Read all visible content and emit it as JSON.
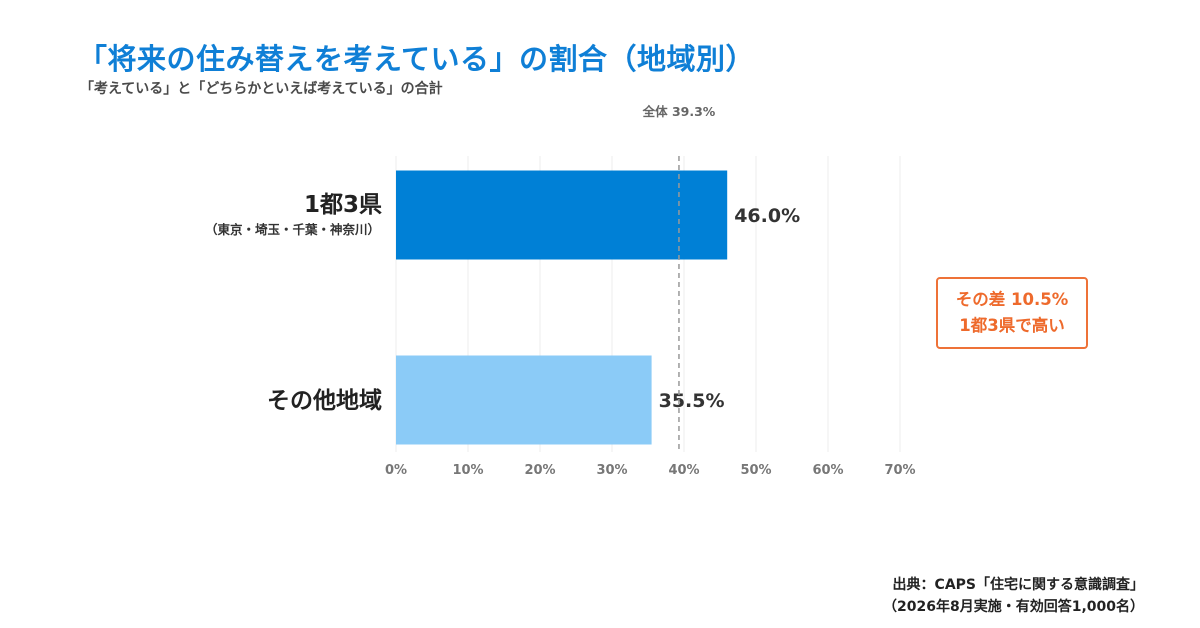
{
  "title": "「将来の住み替えを考えている」の割合（地域別）",
  "subtitle": "「考えている」と「どちらかといえば考えている」の合計",
  "chart_data": {
    "type": "bar",
    "orientation": "horizontal",
    "categories": [
      {
        "label": "1都3県",
        "sublabel": "（東京・埼玉・千葉・神奈川）"
      },
      {
        "label": "その他地域",
        "sublabel": ""
      }
    ],
    "values": [
      46.0,
      35.5
    ],
    "value_labels": [
      "46.0%",
      "35.5%"
    ],
    "colors": [
      "#0080d6",
      "#8bcbf7"
    ],
    "xlim": [
      0,
      70
    ],
    "xticks": [
      0,
      10,
      20,
      30,
      40,
      50,
      60,
      70
    ],
    "xtick_labels": [
      "0%",
      "10%",
      "20%",
      "30%",
      "40%",
      "50%",
      "60%",
      "70%"
    ],
    "grid": true,
    "reference_line": {
      "value": 39.3,
      "label": "全体 39.3%",
      "style": "dashed"
    }
  },
  "callout": {
    "line1": "その差 10.5%",
    "line2": "1都3県で高い",
    "color": "#ee6a2c"
  },
  "source": {
    "line1": "出典：CAPS「住宅に関する意識調査」",
    "line2": "（2026年8月実施・有効回答1,000名）"
  }
}
